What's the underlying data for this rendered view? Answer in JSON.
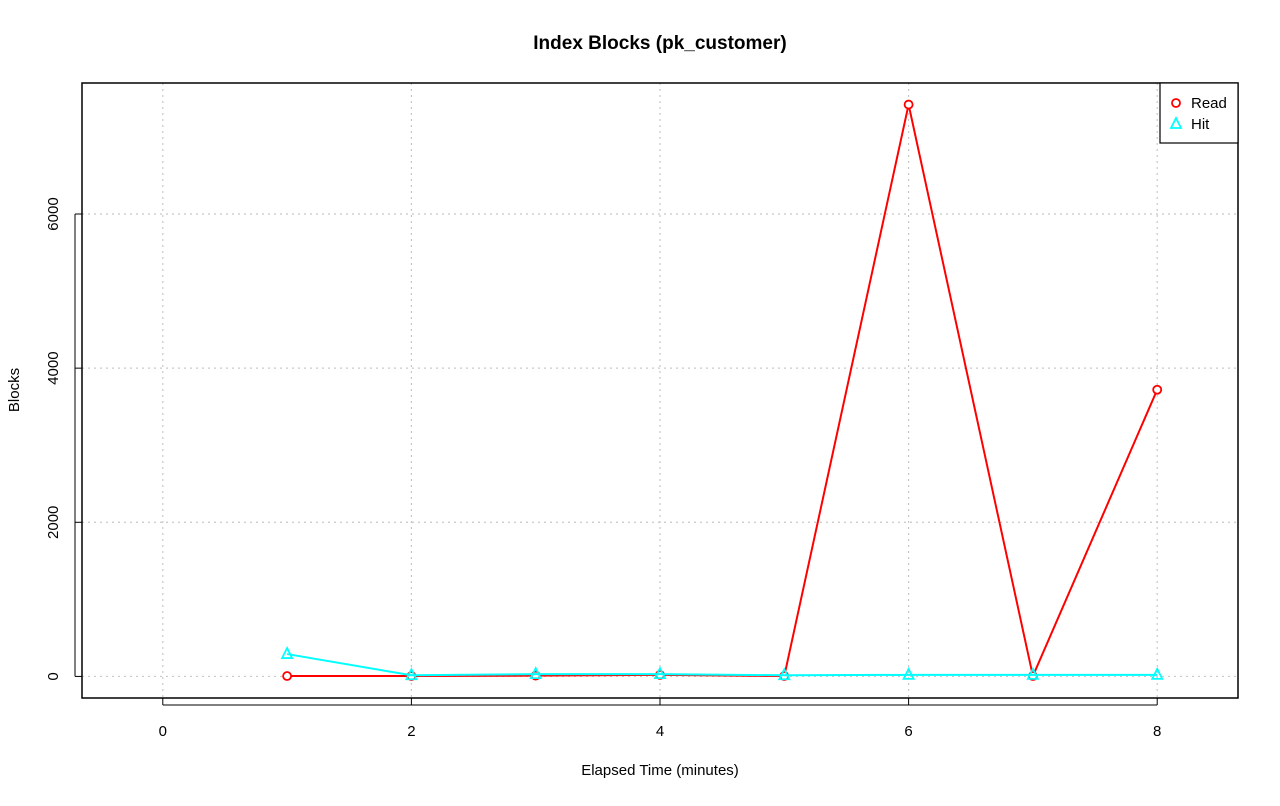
{
  "chart_data": {
    "type": "line",
    "title": "Index Blocks (pk_customer)",
    "xlabel": "Elapsed Time (minutes)",
    "ylabel": "Blocks",
    "xlim": [
      -0.65,
      8.65
    ],
    "ylim": [
      -280,
      7700
    ],
    "x_ticks": [
      0,
      2,
      4,
      6,
      8
    ],
    "y_ticks": [
      0,
      2000,
      4000,
      6000
    ],
    "grid": true,
    "legend_position": "top-right",
    "x": [
      1,
      2,
      3,
      4,
      5,
      6,
      7,
      8
    ],
    "series": [
      {
        "name": "Read",
        "color": "#ff0000",
        "marker": "circle",
        "values": [
          5,
          5,
          10,
          20,
          5,
          7420,
          5,
          3720
        ]
      },
      {
        "name": "Hit",
        "color": "#00ffff",
        "marker": "triangle",
        "values": [
          290,
          15,
          30,
          30,
          15,
          20,
          20,
          20
        ]
      }
    ]
  }
}
